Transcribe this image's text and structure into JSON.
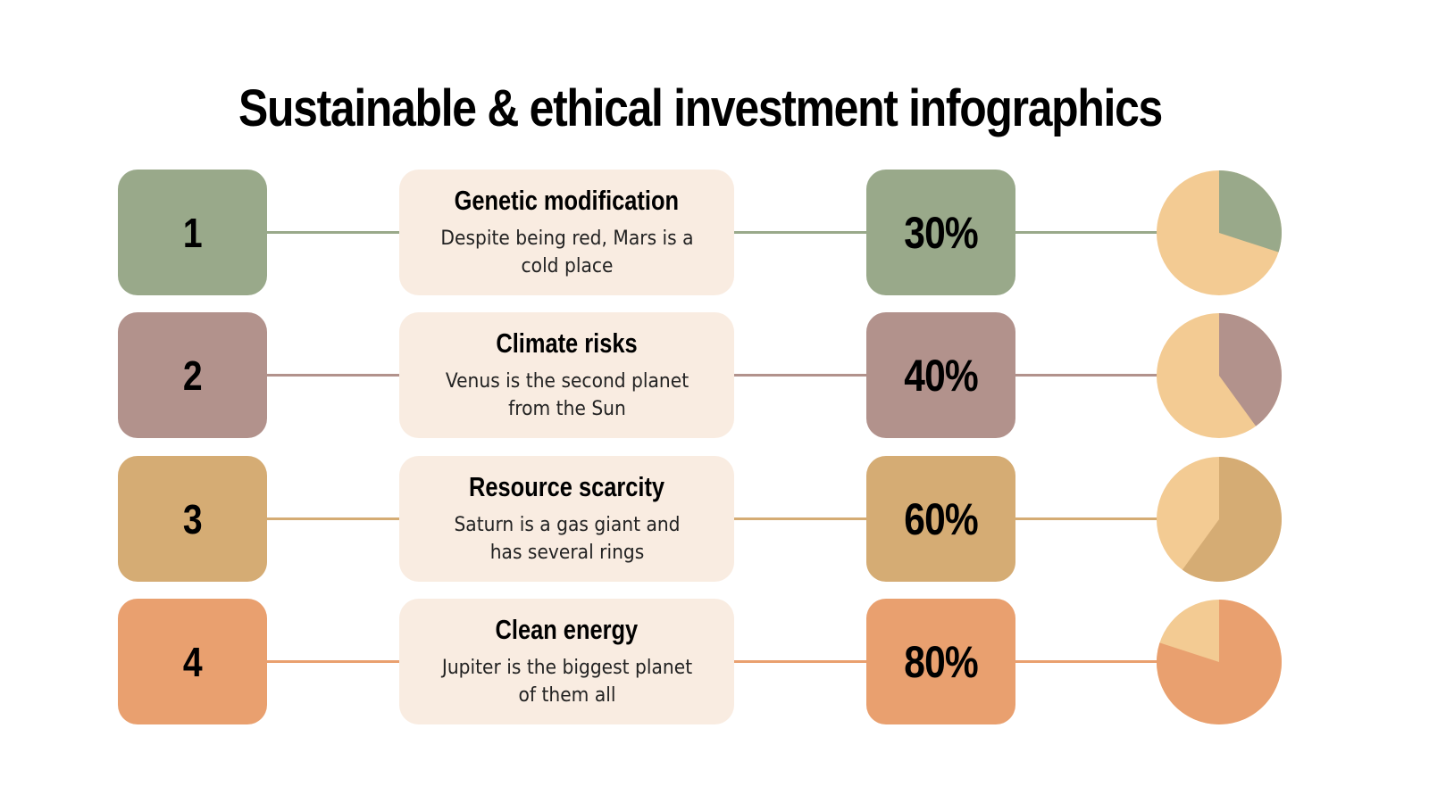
{
  "title": "Sustainable & ethical investment infographics",
  "colors": {
    "card_bg": "#f9ece1",
    "pie_base": "#f3cb93",
    "background": "#ffffff"
  },
  "rows": [
    {
      "number": "1",
      "title": "Genetic modification",
      "description": "Despite being red, Mars is a cold place",
      "percent_label": "30%",
      "percent": 30,
      "color": "#99a98a",
      "pie_icon": "pie-chart-icon"
    },
    {
      "number": "2",
      "title": "Climate risks",
      "description": "Venus is the second planet from the Sun",
      "percent_label": "40%",
      "percent": 40,
      "color": "#b2928c",
      "pie_icon": "pie-chart-icon"
    },
    {
      "number": "3",
      "title": "Resource scarcity",
      "description": "Saturn is a gas giant and has several rings",
      "percent_label": "60%",
      "percent": 60,
      "color": "#d5ac74",
      "pie_icon": "pie-chart-icon"
    },
    {
      "number": "4",
      "title": "Clean energy",
      "description": "Jupiter is the biggest planet of them all",
      "percent_label": "80%",
      "percent": 80,
      "color": "#e9a06f",
      "pie_icon": "pie-chart-icon"
    }
  ]
}
